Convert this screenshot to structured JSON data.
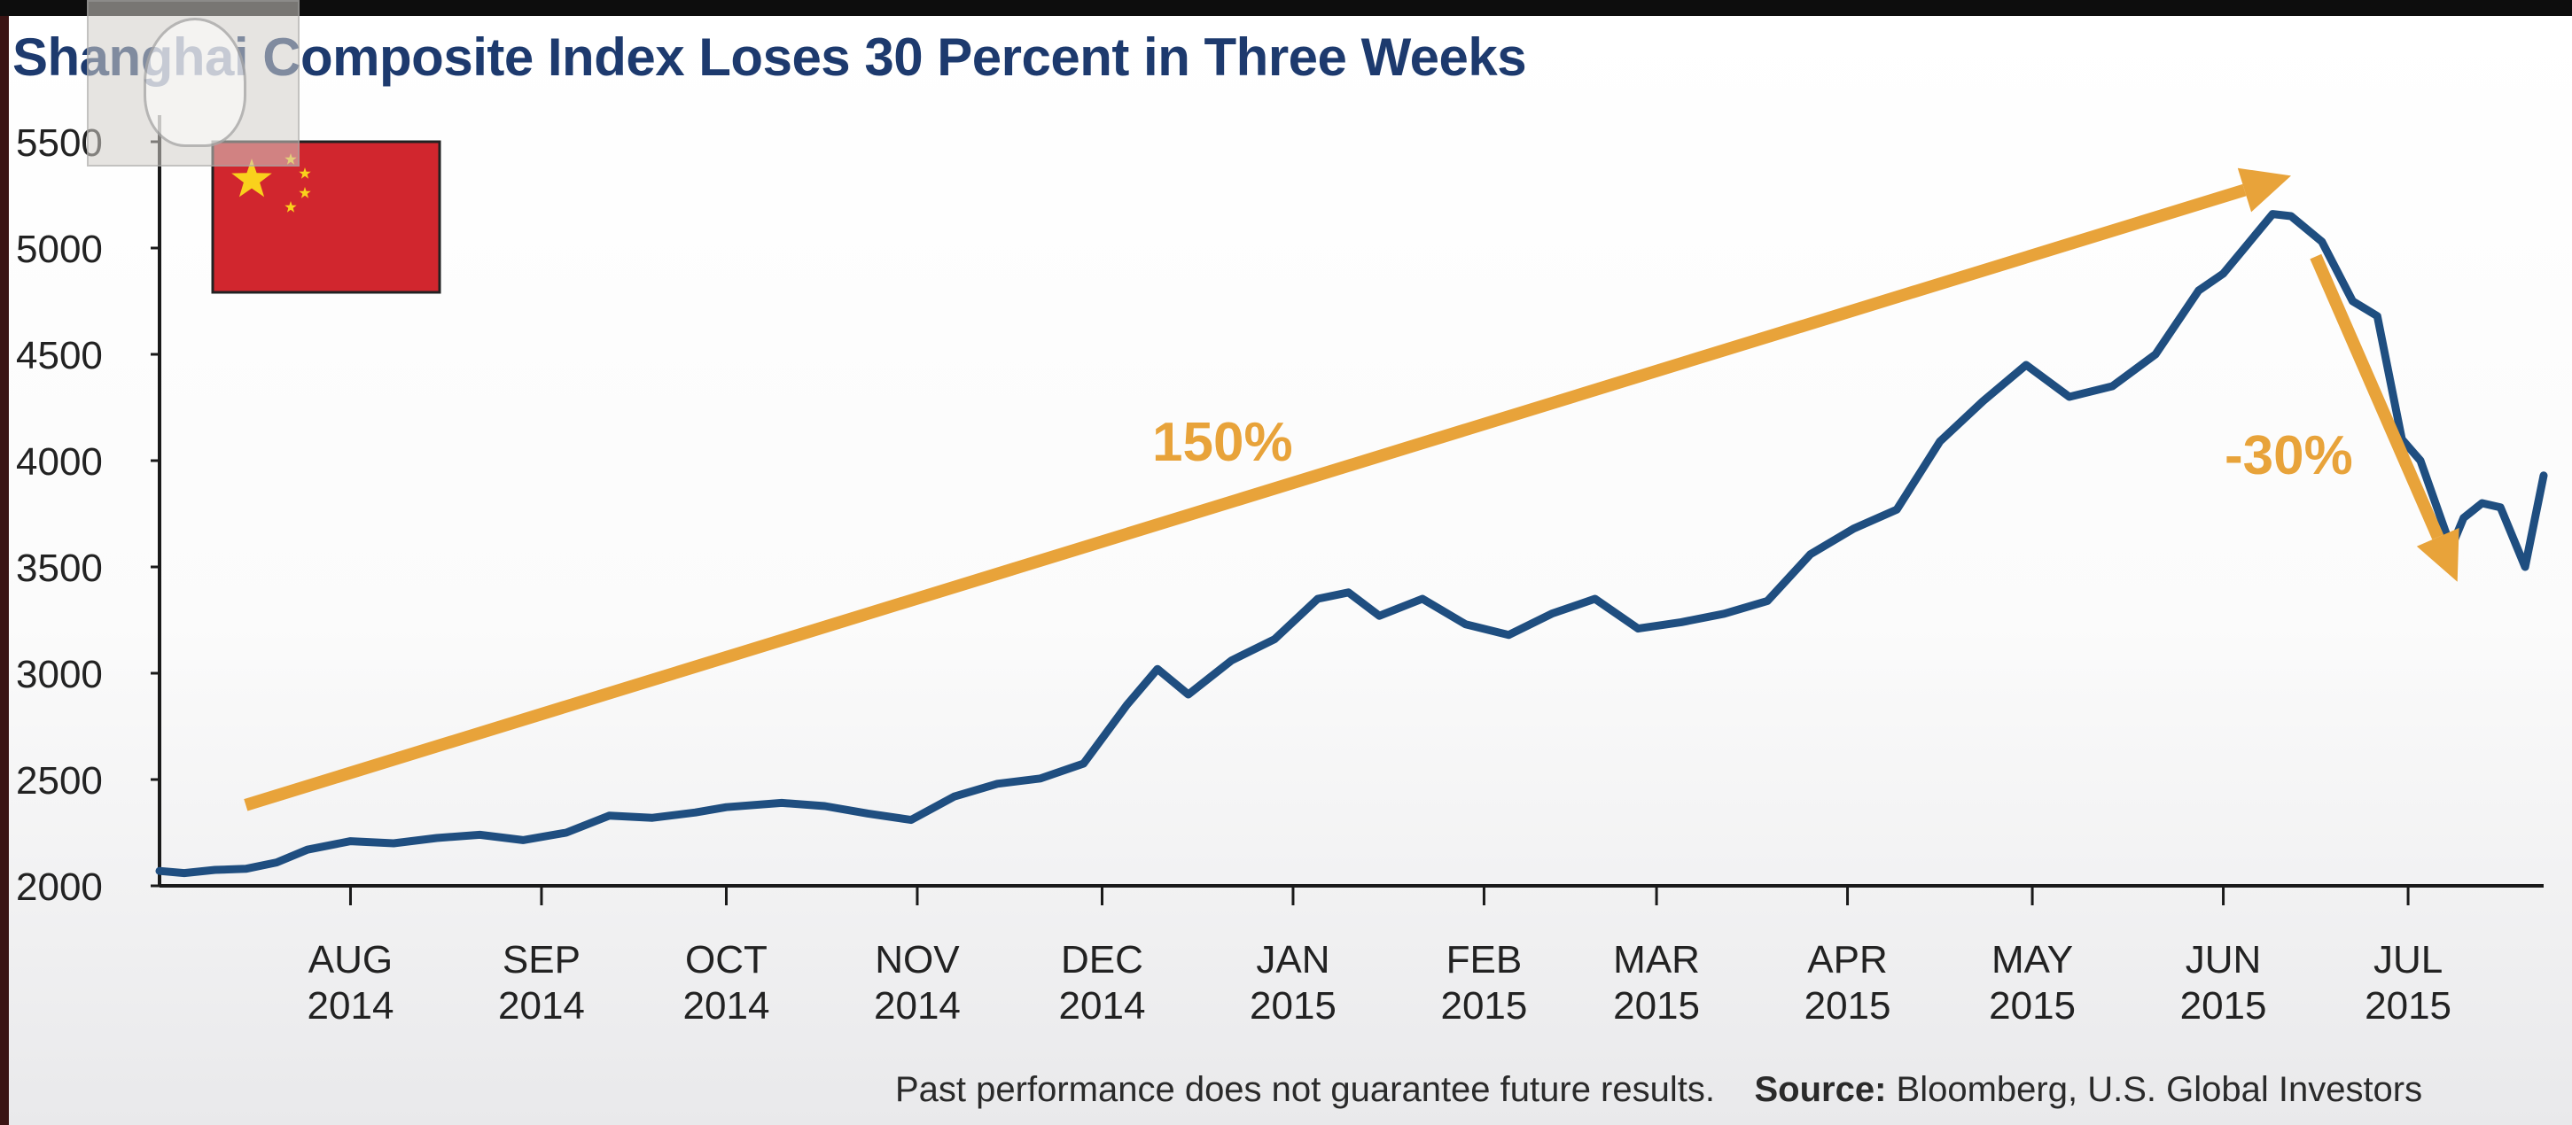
{
  "chart_data": {
    "type": "line",
    "title": "Shanghai Composite Index Loses 30 Percent in Three Weeks",
    "ylim": [
      2000,
      5500
    ],
    "yticks": [
      2000,
      2500,
      3000,
      3500,
      4000,
      4500,
      5000,
      5500
    ],
    "xlim": [
      "2014-07-01",
      "2015-07-23"
    ],
    "xticks": [
      {
        "date": "2014-08-01",
        "label1": "AUG",
        "label2": "2014"
      },
      {
        "date": "2014-09-01",
        "label1": "SEP",
        "label2": "2014"
      },
      {
        "date": "2014-10-01",
        "label1": "OCT",
        "label2": "2014"
      },
      {
        "date": "2014-11-01",
        "label1": "NOV",
        "label2": "2014"
      },
      {
        "date": "2014-12-01",
        "label1": "DEC",
        "label2": "2014"
      },
      {
        "date": "2015-01-01",
        "label1": "JAN",
        "label2": "2015"
      },
      {
        "date": "2015-02-01",
        "label1": "FEB",
        "label2": "2015"
      },
      {
        "date": "2015-03-01",
        "label1": "MAR",
        "label2": "2015"
      },
      {
        "date": "2015-04-01",
        "label1": "APR",
        "label2": "2015"
      },
      {
        "date": "2015-05-01",
        "label1": "MAY",
        "label2": "2015"
      },
      {
        "date": "2015-06-01",
        "label1": "JUN",
        "label2": "2015"
      },
      {
        "date": "2015-07-01",
        "label1": "JUL",
        "label2": "2015"
      }
    ],
    "grid": false,
    "line_color": "#1f4e80",
    "arrow_color": "#e8a33a",
    "series": [
      {
        "x": [
          "2014-07-01",
          "2014-07-05",
          "2014-07-10",
          "2014-07-15",
          "2014-07-20",
          "2014-07-25",
          "2014-08-01",
          "2014-08-08",
          "2014-08-15",
          "2014-08-22",
          "2014-08-29",
          "2014-09-05",
          "2014-09-12",
          "2014-09-19",
          "2014-09-26",
          "2014-10-01",
          "2014-10-10",
          "2014-10-17",
          "2014-10-24",
          "2014-10-31",
          "2014-11-07",
          "2014-11-14",
          "2014-11-21",
          "2014-11-28",
          "2014-12-05",
          "2014-12-10",
          "2014-12-15",
          "2014-12-22",
          "2014-12-29",
          "2015-01-05",
          "2015-01-10",
          "2015-01-15",
          "2015-01-22",
          "2015-01-29",
          "2015-02-05",
          "2015-02-12",
          "2015-02-19",
          "2015-02-26",
          "2015-03-05",
          "2015-03-12",
          "2015-03-19",
          "2015-03-26",
          "2015-04-02",
          "2015-04-09",
          "2015-04-16",
          "2015-04-23",
          "2015-04-30",
          "2015-05-07",
          "2015-05-14",
          "2015-05-21",
          "2015-05-28",
          "2015-06-01",
          "2015-06-05",
          "2015-06-09",
          "2015-06-12",
          "2015-06-17",
          "2015-06-22",
          "2015-06-26",
          "2015-06-30",
          "2015-07-03",
          "2015-07-08",
          "2015-07-10",
          "2015-07-13",
          "2015-07-16",
          "2015-07-20",
          "2015-07-23"
        ],
        "y": [
          2070,
          2060,
          2075,
          2080,
          2110,
          2170,
          2210,
          2200,
          2225,
          2240,
          2215,
          2250,
          2330,
          2320,
          2345,
          2370,
          2390,
          2375,
          2340,
          2310,
          2420,
          2480,
          2505,
          2575,
          2850,
          3020,
          2900,
          3060,
          3160,
          3350,
          3380,
          3270,
          3350,
          3230,
          3180,
          3280,
          3350,
          3210,
          3240,
          3280,
          3340,
          3560,
          3680,
          3770,
          4090,
          4280,
          4450,
          4300,
          4350,
          4500,
          4800,
          4880,
          5020,
          5160,
          5150,
          5030,
          4750,
          4680,
          4100,
          4000,
          3590,
          3730,
          3800,
          3780,
          3500,
          3930
        ]
      }
    ],
    "annotations": [
      {
        "text": "150%",
        "from_date": "2014-07-15",
        "from_y": 2380,
        "to_date": "2015-06-12",
        "to_y": 5340
      },
      {
        "text": "-30%",
        "from_date": "2015-06-16",
        "from_y": 4960,
        "to_date": "2015-07-09",
        "to_y": 3430
      }
    ]
  },
  "footnote": {
    "disclaimer": "Past performance does not guarantee future results.",
    "source_label": "Source:",
    "source_text": "Bloomberg, U.S. Global Investors"
  },
  "flag": {
    "colors": {
      "red": "#d1262e",
      "yellow": "#f9d11c"
    }
  }
}
